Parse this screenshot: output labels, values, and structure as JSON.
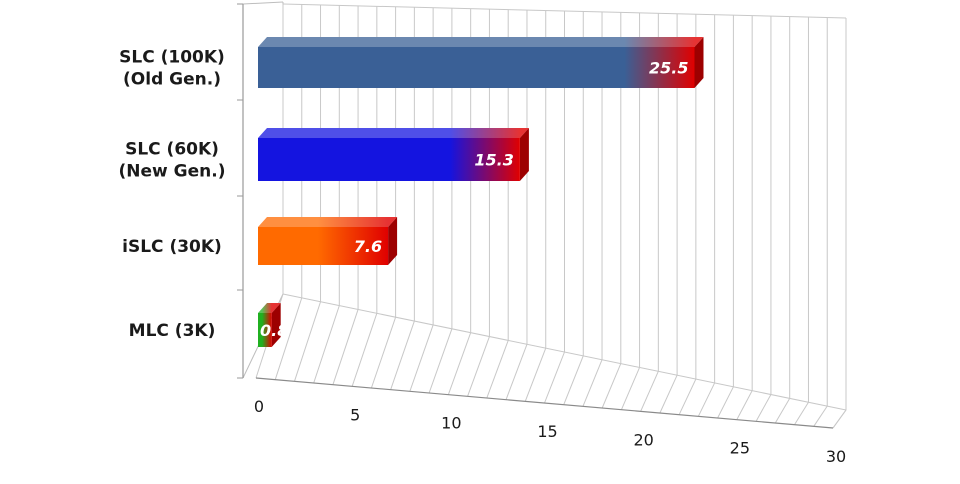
{
  "chart_data": {
    "type": "bar",
    "orientation": "horizontal",
    "style": "3d",
    "categories": [
      [
        "SLC (100K)",
        "(Old Gen.)"
      ],
      [
        "SLC (60K)",
        "(New Gen.)"
      ],
      [
        "iSLC (30K)"
      ],
      [
        "MLC (3K)"
      ]
    ],
    "values": [
      25.5,
      15.3,
      7.6,
      0.8
    ],
    "data_labels": [
      "25.5",
      "15.3",
      "7.6",
      "0.8"
    ],
    "bar_colors": [
      "#3a6096",
      "#1414e0",
      "#ff6a00",
      "#20b020"
    ],
    "end_color": "#e00000",
    "xlim": [
      0,
      30
    ],
    "xticks": [
      "0",
      "5",
      "10",
      "15",
      "20",
      "25",
      "30"
    ],
    "grid": true,
    "legend": "none",
    "title": "",
    "xlabel": "",
    "ylabel": ""
  }
}
